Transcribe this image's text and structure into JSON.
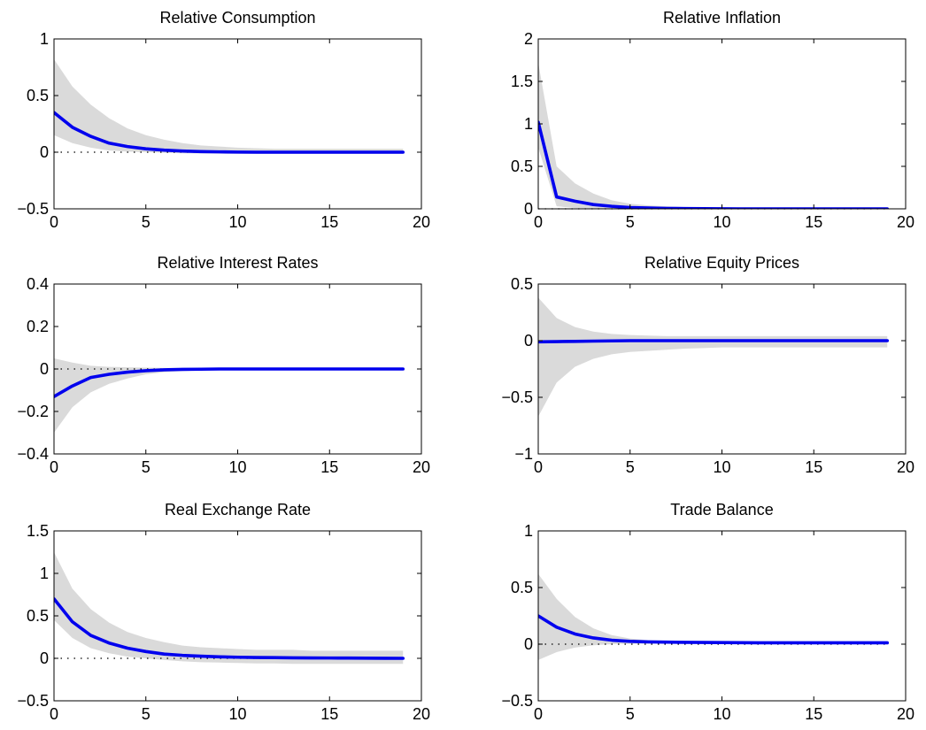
{
  "chart_data": [
    {
      "type": "line",
      "title": "Relative Consumption",
      "xlim": [
        0,
        20
      ],
      "ylim": [
        -0.5,
        1
      ],
      "xticks": [
        0,
        5,
        10,
        15,
        20
      ],
      "xticklabels": [
        "0",
        "5",
        "10",
        "15",
        "20"
      ],
      "yticks": [
        -0.5,
        0,
        0.5,
        1
      ],
      "yticklabels": [
        "−0.5",
        "0",
        "0.5",
        "1"
      ],
      "x": [
        0,
        1,
        2,
        3,
        4,
        5,
        6,
        7,
        8,
        9,
        10,
        11,
        12,
        13,
        14,
        15,
        16,
        17,
        18,
        19
      ],
      "series": [
        {
          "values": [
            0.35,
            0.22,
            0.14,
            0.08,
            0.05,
            0.03,
            0.018,
            0.01,
            0.005,
            0.003,
            0.001,
            0,
            0,
            0,
            0,
            0,
            0,
            0,
            0,
            0
          ]
        }
      ],
      "band_upper": [
        0.82,
        0.58,
        0.42,
        0.3,
        0.21,
        0.15,
        0.11,
        0.08,
        0.06,
        0.05,
        0.04,
        0.035,
        0.03,
        0.03,
        0.03,
        0.03,
        0.03,
        0.03,
        0.03,
        0.03
      ],
      "band_lower": [
        0.15,
        0.08,
        0.04,
        0.015,
        0.005,
        0,
        -0.005,
        -0.01,
        -0.012,
        -0.013,
        -0.014,
        -0.015,
        -0.015,
        -0.015,
        -0.015,
        -0.015,
        -0.015,
        -0.015,
        -0.015,
        -0.015
      ],
      "zero_line": true
    },
    {
      "type": "line",
      "title": "Relative Inflation",
      "xlim": [
        0,
        20
      ],
      "ylim": [
        0,
        2
      ],
      "xticks": [
        0,
        5,
        10,
        15,
        20
      ],
      "xticklabels": [
        "0",
        "5",
        "10",
        "15",
        "20"
      ],
      "yticks": [
        0,
        0.5,
        1,
        1.5,
        2
      ],
      "yticklabels": [
        "0",
        "0.5",
        "1",
        "1.5",
        "2"
      ],
      "x": [
        0,
        1,
        2,
        3,
        4,
        5,
        6,
        7,
        8,
        9,
        10,
        11,
        12,
        13,
        14,
        15,
        16,
        17,
        18,
        19
      ],
      "series": [
        {
          "values": [
            1.02,
            0.14,
            0.09,
            0.05,
            0.03,
            0.015,
            0.01,
            0.005,
            0.003,
            0.002,
            0.001,
            0,
            0,
            0,
            0,
            0,
            0,
            0,
            0,
            0
          ]
        }
      ],
      "band_upper": [
        1.72,
        0.5,
        0.3,
        0.18,
        0.1,
        0.06,
        0.04,
        0.03,
        0.02,
        0.015,
        0.01,
        0.01,
        0.01,
        0.01,
        0.01,
        0.01,
        0.01,
        0.01,
        0.01,
        0.01
      ],
      "band_lower": [
        0.72,
        0.03,
        0.01,
        0.005,
        0,
        0,
        0,
        0,
        0,
        0,
        0,
        0,
        0,
        0,
        0,
        0,
        0,
        0,
        0,
        0
      ],
      "zero_line": true
    },
    {
      "type": "line",
      "title": "Relative Interest Rates",
      "xlim": [
        0,
        20
      ],
      "ylim": [
        -0.4,
        0.4
      ],
      "xticks": [
        0,
        5,
        10,
        15,
        20
      ],
      "xticklabels": [
        "0",
        "5",
        "10",
        "15",
        "20"
      ],
      "yticks": [
        -0.4,
        -0.2,
        0,
        0.2,
        0.4
      ],
      "yticklabels": [
        "−0.4",
        "−0.2",
        "0",
        "0.2",
        "0.4"
      ],
      "x": [
        0,
        1,
        2,
        3,
        4,
        5,
        6,
        7,
        8,
        9,
        10,
        11,
        12,
        13,
        14,
        15,
        16,
        17,
        18,
        19
      ],
      "series": [
        {
          "values": [
            -0.13,
            -0.08,
            -0.04,
            -0.025,
            -0.015,
            -0.008,
            -0.004,
            -0.002,
            -0.001,
            0,
            0,
            0,
            0,
            0,
            0,
            0,
            0,
            0,
            0,
            0
          ]
        }
      ],
      "band_upper": [
        0.05,
        0.03,
        0.015,
        0.01,
        0.008,
        0.006,
        0.005,
        0.004,
        0.004,
        0.004,
        0.004,
        0.004,
        0.004,
        0.004,
        0.004,
        0.004,
        0.004,
        0.004,
        0.004,
        0.004
      ],
      "band_lower": [
        -0.3,
        -0.18,
        -0.11,
        -0.07,
        -0.045,
        -0.025,
        -0.015,
        -0.01,
        -0.007,
        -0.005,
        -0.004,
        -0.004,
        -0.004,
        -0.004,
        -0.004,
        -0.004,
        -0.004,
        -0.004,
        -0.004,
        -0.004
      ],
      "zero_line": true
    },
    {
      "type": "line",
      "title": "Relative Equity Prices",
      "xlim": [
        0,
        20
      ],
      "ylim": [
        -1,
        0.5
      ],
      "xticks": [
        0,
        5,
        10,
        15,
        20
      ],
      "xticklabels": [
        "0",
        "5",
        "10",
        "15",
        "20"
      ],
      "yticks": [
        -1,
        -0.5,
        0,
        0.5
      ],
      "yticklabels": [
        "−1",
        "−0.5",
        "0",
        "0.5"
      ],
      "x": [
        0,
        1,
        2,
        3,
        4,
        5,
        6,
        7,
        8,
        9,
        10,
        11,
        12,
        13,
        14,
        15,
        16,
        17,
        18,
        19
      ],
      "series": [
        {
          "values": [
            -0.01,
            -0.008,
            -0.006,
            -0.004,
            -0.002,
            0,
            0,
            0,
            0,
            0,
            0,
            0,
            0,
            0,
            0,
            0,
            0,
            0,
            0,
            0
          ]
        }
      ],
      "band_upper": [
        0.38,
        0.2,
        0.12,
        0.08,
        0.06,
        0.05,
        0.045,
        0.04,
        0.04,
        0.04,
        0.04,
        0.04,
        0.04,
        0.04,
        0.04,
        0.04,
        0.04,
        0.04,
        0.04,
        0.04
      ],
      "band_lower": [
        -0.67,
        -0.37,
        -0.23,
        -0.16,
        -0.12,
        -0.1,
        -0.09,
        -0.08,
        -0.07,
        -0.065,
        -0.06,
        -0.06,
        -0.06,
        -0.06,
        -0.06,
        -0.06,
        -0.06,
        -0.06,
        -0.06,
        -0.06
      ],
      "zero_line": false
    },
    {
      "type": "line",
      "title": "Real Exchange Rate",
      "xlim": [
        0,
        20
      ],
      "ylim": [
        -0.5,
        1.5
      ],
      "xticks": [
        0,
        5,
        10,
        15,
        20
      ],
      "xticklabels": [
        "0",
        "5",
        "10",
        "15",
        "20"
      ],
      "yticks": [
        -0.5,
        0,
        0.5,
        1,
        1.5
      ],
      "yticklabels": [
        "−0.5",
        "0",
        "0.5",
        "1",
        "1.5"
      ],
      "x": [
        0,
        1,
        2,
        3,
        4,
        5,
        6,
        7,
        8,
        9,
        10,
        11,
        12,
        13,
        14,
        15,
        16,
        17,
        18,
        19
      ],
      "series": [
        {
          "values": [
            0.7,
            0.43,
            0.27,
            0.18,
            0.12,
            0.08,
            0.05,
            0.035,
            0.025,
            0.018,
            0.013,
            0.01,
            0.008,
            0.006,
            0.005,
            0.004,
            0.003,
            0.002,
            0.001,
            0
          ]
        }
      ],
      "band_upper": [
        1.25,
        0.82,
        0.58,
        0.42,
        0.31,
        0.24,
        0.19,
        0.15,
        0.13,
        0.12,
        0.11,
        0.1,
        0.1,
        0.1,
        0.09,
        0.09,
        0.09,
        0.09,
        0.09,
        0.09
      ],
      "band_lower": [
        0.45,
        0.24,
        0.12,
        0.06,
        0.02,
        0,
        -0.02,
        -0.035,
        -0.045,
        -0.05,
        -0.055,
        -0.06,
        -0.06,
        -0.065,
        -0.065,
        -0.065,
        -0.065,
        -0.065,
        -0.065,
        -0.065
      ],
      "zero_line": true
    },
    {
      "type": "line",
      "title": "Trade Balance",
      "xlim": [
        0,
        20
      ],
      "ylim": [
        -0.5,
        1
      ],
      "xticks": [
        0,
        5,
        10,
        15,
        20
      ],
      "xticklabels": [
        "0",
        "5",
        "10",
        "15",
        "20"
      ],
      "yticks": [
        -0.5,
        0,
        0.5,
        1
      ],
      "yticklabels": [
        "−0.5",
        "0",
        "0.5",
        "1"
      ],
      "x": [
        0,
        1,
        2,
        3,
        4,
        5,
        6,
        7,
        8,
        9,
        10,
        11,
        12,
        13,
        14,
        15,
        16,
        17,
        18,
        19
      ],
      "series": [
        {
          "values": [
            0.25,
            0.15,
            0.09,
            0.055,
            0.035,
            0.025,
            0.02,
            0.018,
            0.016,
            0.015,
            0.014,
            0.013,
            0.012,
            0.012,
            0.012,
            0.012,
            0.012,
            0.012,
            0.012,
            0.012
          ]
        }
      ],
      "band_upper": [
        0.62,
        0.4,
        0.24,
        0.14,
        0.08,
        0.05,
        0.035,
        0.03,
        0.025,
        0.022,
        0.02,
        0.02,
        0.02,
        0.02,
        0.02,
        0.02,
        0.02,
        0.02,
        0.02,
        0.02
      ],
      "band_lower": [
        -0.14,
        -0.07,
        -0.03,
        -0.01,
        0,
        0.003,
        0.005,
        0.006,
        0.006,
        0.006,
        0.006,
        0.006,
        0.006,
        0.006,
        0.006,
        0.006,
        0.006,
        0.006,
        0.006,
        0.006
      ],
      "zero_line": true
    }
  ]
}
